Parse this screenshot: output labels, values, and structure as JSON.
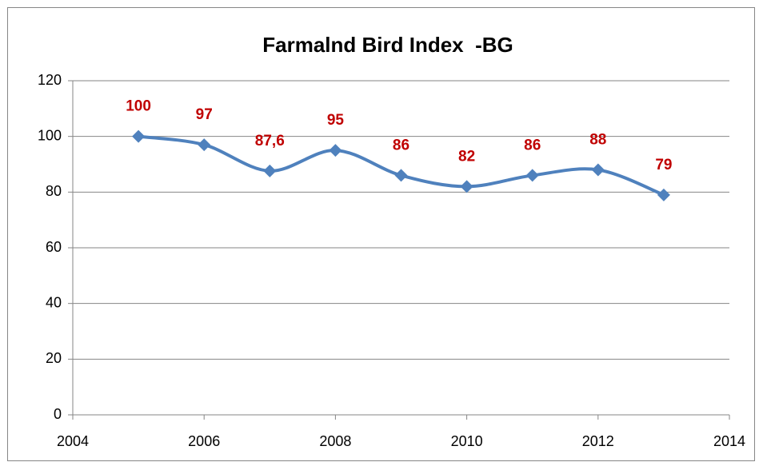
{
  "chart_data": {
    "type": "line",
    "title": "Farmalnd Bird Index  -BG",
    "x": [
      2005,
      2006,
      2007,
      2008,
      2009,
      2010,
      2011,
      2012,
      2013
    ],
    "series": [
      {
        "color": "#4f81bd",
        "values": [
          100,
          97,
          87.6,
          95,
          86,
          82,
          86,
          88,
          79
        ],
        "value_labels": [
          "100",
          "97",
          "87,6",
          "95",
          "86",
          "82",
          "86",
          "88",
          "79"
        ],
        "value_label_color": "#c00000"
      }
    ],
    "xlim": [
      2004,
      2014
    ],
    "xticks": [
      2004,
      2006,
      2008,
      2010,
      2012,
      2014
    ],
    "ylim": [
      0,
      120
    ],
    "yticks": [
      0,
      20,
      40,
      60,
      80,
      100,
      120
    ],
    "grid": true,
    "smooth": true
  }
}
